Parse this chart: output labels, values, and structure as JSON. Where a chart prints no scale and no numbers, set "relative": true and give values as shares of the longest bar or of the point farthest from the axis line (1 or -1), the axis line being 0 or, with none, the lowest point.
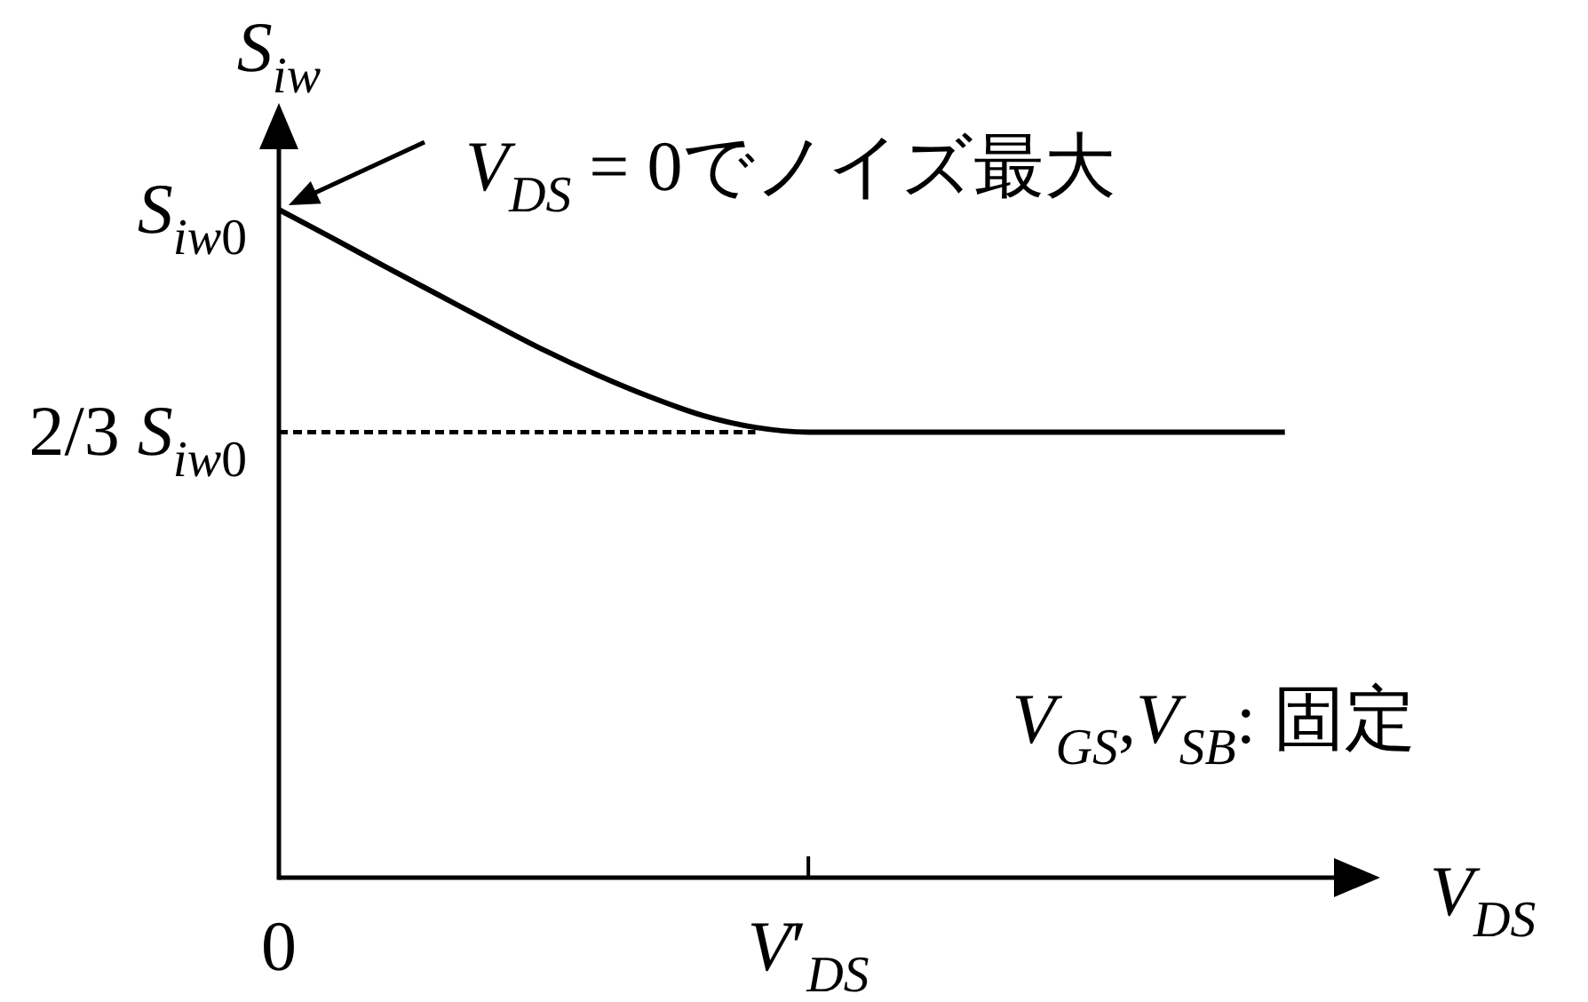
{
  "chart_data": {
    "type": "line",
    "relative": true,
    "xlabel": "V$_{DS}$",
    "ylabel": "S$_{iw}$",
    "categories": [
      "0",
      null,
      null,
      null,
      null,
      null,
      null,
      null,
      null,
      null,
      "V′$_{DS}$",
      null,
      null,
      null,
      null,
      null,
      null,
      null,
      null,
      null
    ],
    "series": [
      {
        "color": "#000000",
        "line_style": "solid",
        "values": [
          1,
          0.958,
          0.915,
          0.873,
          0.831,
          0.79,
          0.753,
          0.72,
          0.692,
          0.674,
          0.667,
          0.667,
          0.667,
          0.667,
          0.667,
          0.667,
          0.667,
          0.667,
          0.667,
          0.667
        ]
      },
      {
        "color": "#000000",
        "line_style": "dotted",
        "values": [
          0.667,
          0.667,
          0.667,
          0.667,
          0.667,
          0.667,
          0.667,
          0.667,
          0.667,
          0.667,
          null,
          null,
          null,
          null,
          null,
          null,
          null,
          null,
          null,
          null
        ]
      }
    ],
    "annotations": [
      "S$_{iw0}$",
      "2/3 S$_{iw0}$",
      {
        "text": "V$_{DS}$ = 0でノイズ最大",
        "x": "0",
        "y": 1
      },
      "V$_{GS}$,V$_{SB}$: 固定"
    ],
    "grid": false
  }
}
